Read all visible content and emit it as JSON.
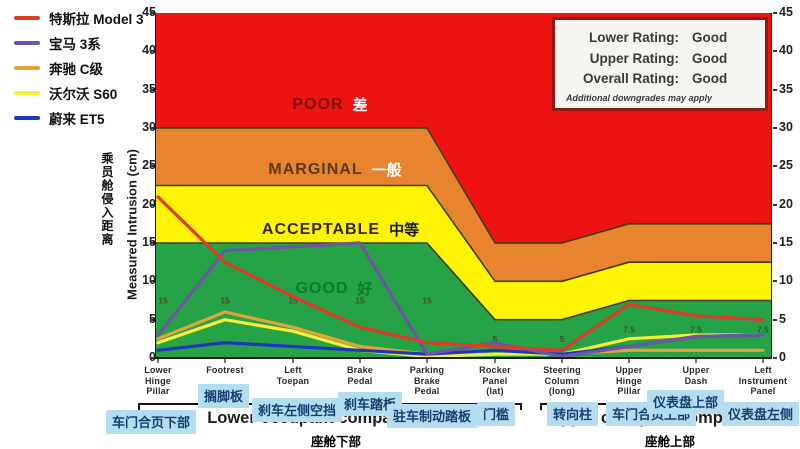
{
  "colors": {
    "zone_poor": "#ee1212",
    "zone_marginal": "#e8832e",
    "zone_acceptable": "#fdf303",
    "zone_good": "#26a247",
    "zone_border": "#3e3e12",
    "axis_line": "#1a1a1a",
    "axis_text": "#1f1f1f",
    "threshold_label": "#41512a",
    "translation_box_bg": "#b5ddf2",
    "translation_box_text": "#153f70",
    "rating_border": "#8c1d12",
    "rating_bg": "#f6f4ee"
  },
  "legend": {
    "items": [
      {
        "key": "tesla-model-3",
        "label": "特斯拉 Model 3",
        "color": "#e03a28"
      },
      {
        "key": "bmw-3-series",
        "label": "宝马 3系",
        "color": "#6f55a5"
      },
      {
        "key": "mercedes-c-class",
        "label": "奔驰 C级",
        "color": "#e3a23a"
      },
      {
        "key": "volvo-s60",
        "label": "沃尔沃 S60",
        "color": "#f5ef35"
      },
      {
        "key": "nio-et5",
        "label": "蔚来 ET5",
        "color": "#1f36bc"
      }
    ]
  },
  "y_axis": {
    "title_en": "Measured Intrusion (cm)",
    "title_zh": "乘员舱侵入距离",
    "ticks": [
      45,
      40,
      35,
      30,
      25,
      20,
      15,
      10,
      5,
      0
    ]
  },
  "zones": [
    {
      "en": "POOR",
      "zh": "差"
    },
    {
      "en": "MARGINAL",
      "zh": "一般"
    },
    {
      "en": "ACCEPTABLE",
      "zh": "中等"
    },
    {
      "en": "GOOD",
      "zh": "好"
    }
  ],
  "groups": [
    {
      "en": "Lower occupant compartment",
      "zh": "座舱下部"
    },
    {
      "en": "Upper occupant compartment",
      "zh": "座舱上部"
    }
  ],
  "rating_box": {
    "rows": [
      {
        "label": "Lower Rating:",
        "value": "Good"
      },
      {
        "label": "Upper Rating:",
        "value": "Good"
      },
      {
        "label": "Overall Rating:",
        "value": "Good"
      }
    ],
    "note": "Additional downgrades may apply"
  },
  "chart_data": {
    "type": "line",
    "title": "",
    "ylabel": "Measured Intrusion (cm)",
    "ylim": [
      0,
      45
    ],
    "grid": false,
    "legend_position": "top-left",
    "categories": [
      {
        "full": "Lower Hinge Pillar",
        "lines": [
          "Lower",
          "Hinge",
          "Pillar"
        ],
        "zh": "车门合页下部"
      },
      {
        "full": "Footrest",
        "lines": [
          "Footrest"
        ],
        "zh": "搁脚板"
      },
      {
        "full": "Left Toepan",
        "lines": [
          "Left",
          "Toepan"
        ],
        "zh": "刹车左侧空挡"
      },
      {
        "full": "Brake Pedal",
        "lines": [
          "Brake",
          "Pedal"
        ],
        "zh": "刹车踏板"
      },
      {
        "full": "Parking Brake Pedal",
        "lines": [
          "Parking",
          "Brake",
          "Pedal"
        ],
        "zh": "驻车制动踏板"
      },
      {
        "full": "Rocker Panel (lat)",
        "lines": [
          "Rocker",
          "Panel",
          "(lat)"
        ],
        "zh": "门槛"
      },
      {
        "full": "Steering Column (long)",
        "lines": [
          "Steering",
          "Column",
          "(long)"
        ],
        "zh": "转向柱"
      },
      {
        "full": "Upper Hinge Pillar",
        "lines": [
          "Upper",
          "Hinge",
          "Pillar"
        ],
        "zh": "车门合页上部"
      },
      {
        "full": "Upper Dash",
        "lines": [
          "Upper",
          "Dash"
        ],
        "zh": "仪表盘上部"
      },
      {
        "full": "Left Instrument Panel",
        "lines": [
          "Left",
          "Instrument",
          "Panel"
        ],
        "zh": "仪表盘左侧"
      }
    ],
    "rating_bands": {
      "good_top": [
        15,
        15,
        15,
        15,
        15,
        5,
        5,
        7.5,
        7.5,
        7.5
      ],
      "acceptable_top": [
        22.5,
        22.5,
        22.5,
        22.5,
        22.5,
        10,
        10,
        12.5,
        12.5,
        12.5
      ],
      "marginal_top": [
        30,
        30,
        30,
        30,
        30,
        15,
        15,
        17.5,
        17.5,
        17.5
      ],
      "poor_top": 45
    },
    "threshold_labels": [
      "15",
      "15",
      "15",
      "15",
      "15",
      "5",
      "5",
      "7.5",
      "7.5",
      "7.5"
    ],
    "series": [
      {
        "name": "特斯拉 Model 3",
        "key": "tesla-model-3",
        "color": "#e03a28",
        "values": [
          21,
          12.5,
          8,
          4,
          2,
          1.5,
          1,
          7,
          5.5,
          5
        ]
      },
      {
        "name": "宝马 3系",
        "key": "bmw-3-series",
        "color": "#6f55a5",
        "values": [
          3,
          14,
          14.5,
          15,
          0.5,
          2,
          0.2,
          1.5,
          2.8,
          3
        ]
      },
      {
        "name": "奔驰 C级",
        "key": "mercedes-c-class",
        "color": "#e3a23a",
        "values": [
          2.5,
          6,
          4,
          1.5,
          0.5,
          1,
          0.5,
          1,
          1,
          1
        ]
      },
      {
        "name": "沃尔沃 S60",
        "key": "volvo-s60",
        "color": "#f5ef35",
        "values": [
          2,
          5,
          3.5,
          1,
          0.2,
          0.5,
          0.5,
          2.5,
          3,
          3
        ]
      },
      {
        "name": "蔚来 ET5",
        "key": "nio-et5",
        "color": "#1f36bc",
        "values": [
          1,
          2,
          1.5,
          1,
          0.5,
          1,
          0.5,
          1.5,
          2.8,
          3
        ]
      }
    ]
  }
}
